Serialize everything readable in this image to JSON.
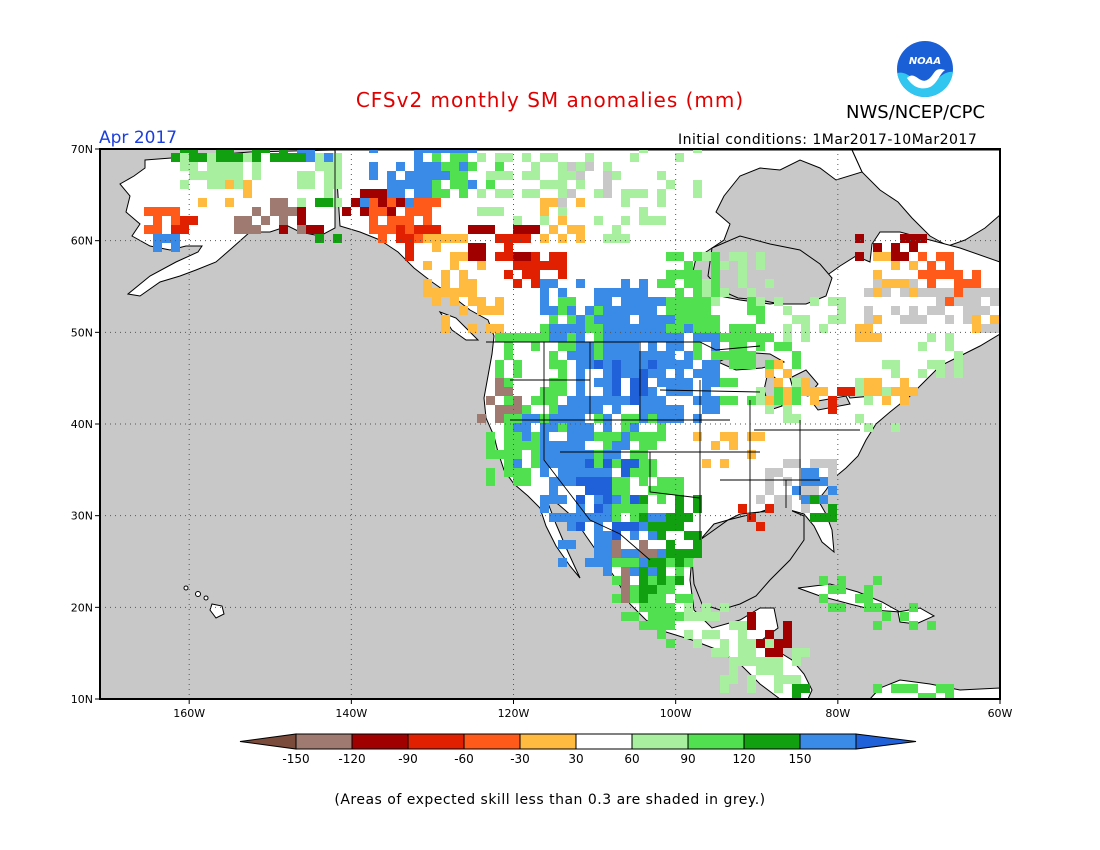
{
  "header": {
    "title": "CFSv2 monthly SM anomalies (mm)",
    "agency": "NWS/NCEP/CPC",
    "period": "Apr 2017",
    "initial_conditions": "Initial conditions: 1Mar2017-10Mar2017",
    "logo_text": "NOAA"
  },
  "colors": {
    "title": "#e00000",
    "period": "#1a3ee0",
    "ocean": "#c8c8c8",
    "land_neutral": "#ffffff",
    "grey_low_skill": "#c8c8c8",
    "logo_blue": "#1a5fd6",
    "logo_cyan": "#31c6f0"
  },
  "map": {
    "lon_range": [
      -171,
      -60
    ],
    "lat_range": [
      10,
      70
    ],
    "lon_ticks": [
      "160W",
      "140W",
      "120W",
      "100W",
      "80W",
      "60W"
    ],
    "lat_ticks": [
      "70N",
      "60N",
      "50N",
      "40N",
      "30N",
      "20N",
      "10N"
    ],
    "grid": "dotted"
  },
  "legend": {
    "labels": [
      "-150",
      "-120",
      "-90",
      "-60",
      "-30",
      "30",
      "60",
      "90",
      "120",
      "150"
    ],
    "colors": [
      "#7a4a3a",
      "#9e7a70",
      "#a00000",
      "#e02000",
      "#ff5a1a",
      "#ffba40",
      "#ffffff",
      "#a8f0a0",
      "#50e050",
      "#10a010",
      "#3a8ae8",
      "#2060d8"
    ]
  },
  "footnote": "(Areas of expected skill less than 0.3 are shaded in grey.)"
}
